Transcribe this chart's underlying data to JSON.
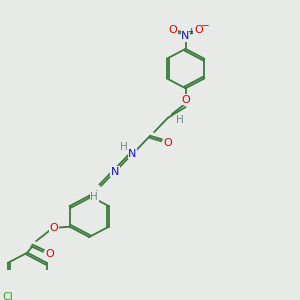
{
  "bg_color": "#e8eae8",
  "bond_color": "#3a7a3a",
  "atom_colors": {
    "O": "#e00000",
    "N": "#1010cc",
    "Cl": "#22aa22",
    "H": "#6a8a8a",
    "C": "#3a7a3a"
  },
  "figsize": [
    3.0,
    3.0
  ],
  "dpi": 100,
  "lw": 1.3
}
